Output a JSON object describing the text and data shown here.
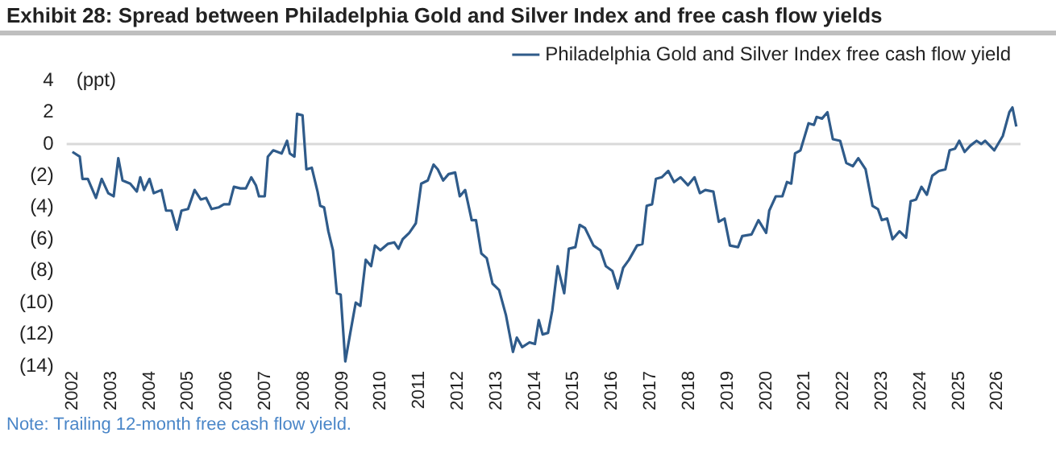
{
  "chart_data": {
    "type": "line",
    "title": "Exhibit 28: Spread between Philadelphia Gold and Silver Index and free cash flow yields",
    "ylabel": "(ppt)",
    "annotations": [
      "Note: Trailing 12-month free cash flow yield."
    ],
    "x": [
      2002.0,
      2002.19,
      2002.26,
      2002.4,
      2002.61,
      2002.76,
      2002.93,
      2003.07,
      2003.19,
      2003.3,
      2003.5,
      2003.67,
      2003.76,
      2003.86,
      2004.0,
      2004.11,
      2004.31,
      2004.43,
      2004.57,
      2004.71,
      2004.83,
      2005.0,
      2005.17,
      2005.33,
      2005.47,
      2005.61,
      2005.79,
      2005.93,
      2006.07,
      2006.19,
      2006.36,
      2006.5,
      2006.64,
      2006.76,
      2006.84,
      2006.99,
      2007.07,
      2007.21,
      2007.43,
      2007.57,
      2007.64,
      2007.76,
      2007.83,
      2007.97,
      2008.07,
      2008.21,
      2008.36,
      2008.43,
      2008.53,
      2008.64,
      2008.76,
      2008.86,
      2008.96,
      2009.08,
      2009.21,
      2009.35,
      2009.47,
      2009.61,
      2009.75,
      2009.85,
      2009.99,
      2010.18,
      2010.35,
      2010.46,
      2010.57,
      2010.74,
      2010.91,
      2011.05,
      2011.22,
      2011.37,
      2011.48,
      2011.62,
      2011.76,
      2011.93,
      2012.05,
      2012.19,
      2012.36,
      2012.47,
      2012.61,
      2012.75,
      2012.9,
      2013.07,
      2013.25,
      2013.43,
      2013.53,
      2013.67,
      2013.86,
      2014.0,
      2014.1,
      2014.2,
      2014.34,
      2014.45,
      2014.59,
      2014.76,
      2014.88,
      2015.05,
      2015.16,
      2015.3,
      2015.52,
      2015.7,
      2015.84,
      2016.01,
      2016.15,
      2016.29,
      2016.44,
      2016.65,
      2016.79,
      2016.9,
      2017.04,
      2017.14,
      2017.29,
      2017.46,
      2017.61,
      2017.78,
      2017.97,
      2018.14,
      2018.28,
      2018.42,
      2018.63,
      2018.77,
      2018.92,
      2019.06,
      2019.27,
      2019.38,
      2019.62,
      2019.8,
      2020.0,
      2020.08,
      2020.25,
      2020.42,
      2020.54,
      2020.65,
      2020.75,
      2020.89,
      2021.1,
      2021.24,
      2021.31,
      2021.45,
      2021.59,
      2021.73,
      2021.92,
      2022.08,
      2022.25,
      2022.39,
      2022.58,
      2022.76,
      2022.9,
      2023.0,
      2023.14,
      2023.28,
      2023.46,
      2023.63,
      2023.75,
      2023.89,
      2024.03,
      2024.17,
      2024.31,
      2024.48,
      2024.65,
      2024.76,
      2024.9,
      2025.01,
      2025.15,
      2025.3,
      2025.46,
      2025.58,
      2025.68,
      2025.92,
      2026.14,
      2026.31,
      2026.39,
      2026.49
    ],
    "series": [
      {
        "name": "Philadelphia Gold and Silver Index free cash flow yield",
        "color": "#2f5b8a",
        "values": [
          -0.5,
          -0.8,
          -2.2,
          -2.2,
          -3.4,
          -2.2,
          -3.1,
          -3.3,
          -0.9,
          -2.3,
          -2.5,
          -3.0,
          -2.1,
          -2.9,
          -2.2,
          -3.1,
          -2.9,
          -4.2,
          -4.2,
          -5.4,
          -4.2,
          -4.1,
          -2.9,
          -3.5,
          -3.4,
          -4.1,
          -4.0,
          -3.8,
          -3.8,
          -2.7,
          -2.8,
          -2.8,
          -2.1,
          -2.6,
          -3.3,
          -3.3,
          -0.8,
          -0.4,
          -0.6,
          0.2,
          -0.6,
          -0.8,
          1.9,
          1.8,
          -1.6,
          -1.5,
          -3.0,
          -3.9,
          -4.0,
          -5.5,
          -6.7,
          -9.4,
          -9.5,
          -13.7,
          -11.9,
          -10.0,
          -10.2,
          -7.3,
          -7.7,
          -6.4,
          -6.7,
          -6.3,
          -6.2,
          -6.6,
          -6.0,
          -5.6,
          -5.0,
          -2.5,
          -2.3,
          -1.3,
          -1.6,
          -2.3,
          -1.9,
          -1.8,
          -3.3,
          -2.9,
          -4.8,
          -4.8,
          -6.9,
          -7.2,
          -8.8,
          -9.2,
          -10.8,
          -13.1,
          -12.2,
          -12.8,
          -12.5,
          -12.6,
          -11.1,
          -12.0,
          -11.9,
          -10.5,
          -7.7,
          -9.4,
          -6.6,
          -6.5,
          -5.1,
          -5.3,
          -6.4,
          -6.7,
          -7.7,
          -8.0,
          -9.1,
          -7.8,
          -7.3,
          -6.4,
          -6.3,
          -3.9,
          -3.8,
          -2.2,
          -2.1,
          -1.7,
          -2.4,
          -2.1,
          -2.6,
          -2.1,
          -3.1,
          -2.9,
          -3.0,
          -4.9,
          -4.7,
          -6.4,
          -6.5,
          -5.8,
          -5.7,
          -4.8,
          -5.6,
          -4.2,
          -3.3,
          -3.3,
          -2.4,
          -2.5,
          -0.6,
          -0.4,
          1.3,
          1.2,
          1.7,
          1.6,
          2.0,
          0.3,
          0.2,
          -1.2,
          -1.4,
          -0.9,
          -1.6,
          -3.9,
          -4.1,
          -4.8,
          -4.7,
          -6.0,
          -5.5,
          -5.9,
          -3.6,
          -3.5,
          -2.7,
          -3.2,
          -2.0,
          -1.7,
          -1.6,
          -0.4,
          -0.3,
          0.2,
          -0.5,
          -0.1,
          0.2,
          0,
          0.2,
          -0.4,
          0.5,
          2.0,
          2.3,
          1.1
        ]
      }
    ],
    "xlim": [
      2001.85,
      2026.6
    ],
    "xticks": [
      2002,
      2003,
      2004,
      2005,
      2006,
      2007,
      2008,
      2009,
      2010,
      2011,
      2012,
      2013,
      2014,
      2015,
      2016,
      2017,
      2018,
      2019,
      2020,
      2021,
      2022,
      2023,
      2024,
      2025,
      2026
    ],
    "ylim": [
      -14,
      4
    ],
    "yticks": [
      {
        "value": -14,
        "label": "(14)"
      },
      {
        "value": -12,
        "label": "(12)"
      },
      {
        "value": -10,
        "label": "(10)"
      },
      {
        "value": -8,
        "label": "(8)"
      },
      {
        "value": -6,
        "label": "(6)"
      },
      {
        "value": -4,
        "label": "(4)"
      },
      {
        "value": -2,
        "label": "(2)"
      },
      0,
      2,
      4
    ],
    "ref_lines": [
      {
        "axis": "y",
        "value": 0,
        "color": "#d9d9d9"
      }
    ],
    "grid": false,
    "legend": "top right",
    "marker": "none",
    "line_style": "solid"
  }
}
